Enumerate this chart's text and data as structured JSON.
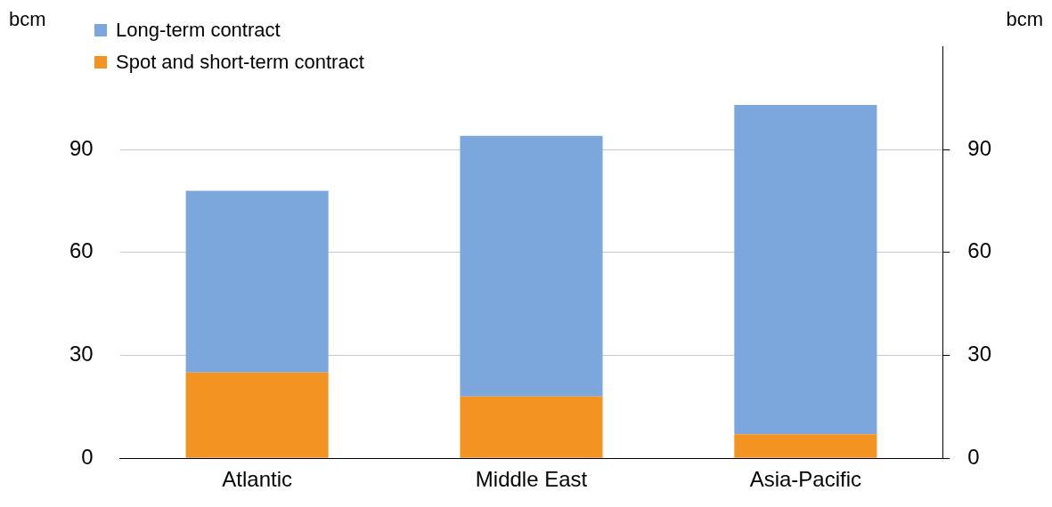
{
  "chart_data": {
    "type": "bar",
    "stacked": true,
    "ylabel": "bcm",
    "y2label": "bcm",
    "categories": [
      "Atlantic",
      "Middle East",
      "Asia-Pacific"
    ],
    "series": [
      {
        "name": "Spot and short-term contract",
        "color": "#f39322",
        "values": [
          25,
          18,
          7
        ]
      },
      {
        "name": "Long-term contract",
        "color": "#7ba7dc",
        "values": [
          53,
          76,
          96
        ]
      }
    ],
    "ylim": [
      0,
      120
    ],
    "yticks": [
      0,
      30,
      60,
      90
    ],
    "y2lim": [
      0,
      120
    ],
    "y2ticks": [
      0,
      30,
      60,
      90
    ],
    "grid": "y",
    "legend": "top left"
  }
}
